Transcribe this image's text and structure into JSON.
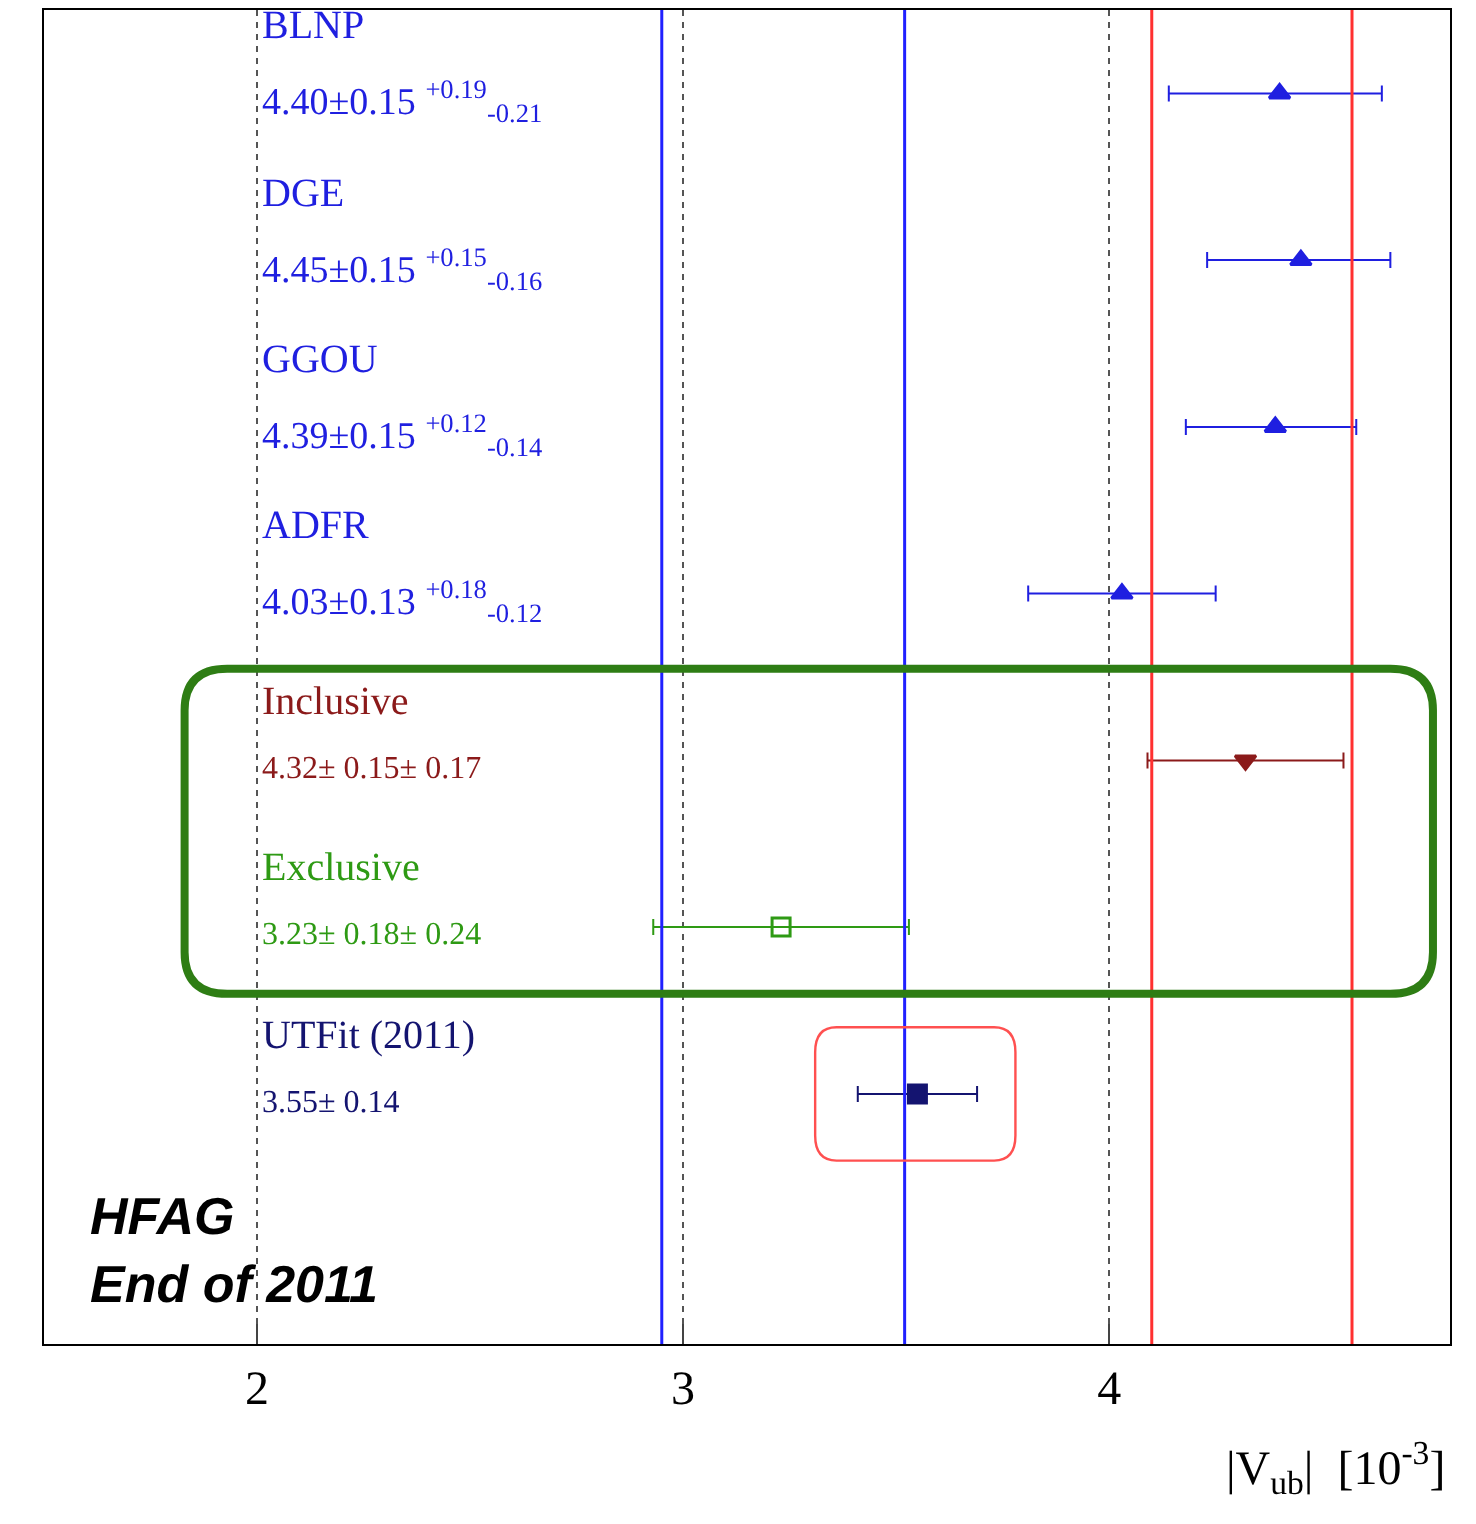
{
  "chart_data": {
    "type": "scatter",
    "orientation": "horizontal",
    "xlabel": "|V$_{ub}$|  [10$^{-3}$]",
    "categories": [
      "BLNP",
      "DGE",
      "GGOU",
      "ADFR",
      "Inclusive",
      "Exclusive",
      "UTFit (2011)",
      null
    ],
    "series": [
      {
        "color": "#1f1fe0",
        "marker": "triangle",
        "values": [
          4.4,
          null,
          null,
          null,
          null,
          null,
          null,
          null
        ],
        "errors": [
          [
            4.14,
            4.64
          ],
          null,
          null,
          null,
          null,
          null,
          null,
          null
        ]
      },
      {
        "color": "#1f1fe0",
        "marker": "triangle",
        "values": [
          null,
          4.45,
          null,
          null,
          null,
          null,
          null,
          null
        ],
        "errors": [
          null,
          [
            4.23,
            4.66
          ],
          null,
          null,
          null,
          null,
          null,
          null
        ]
      },
      {
        "color": "#1f1fe0",
        "marker": "triangle",
        "values": [
          null,
          null,
          4.39,
          null,
          null,
          null,
          null,
          null
        ],
        "errors": [
          null,
          null,
          [
            4.18,
            4.58
          ],
          null,
          null,
          null,
          null,
          null
        ]
      },
      {
        "color": "#1f1fe0",
        "marker": "triangle",
        "values": [
          null,
          null,
          null,
          4.03,
          null,
          null,
          null,
          null
        ],
        "errors": [
          null,
          null,
          null,
          [
            3.81,
            4.25
          ],
          null,
          null,
          null,
          null
        ]
      },
      {
        "color": "#8b1a1a",
        "marker": "triangle-down",
        "values": [
          null,
          null,
          null,
          null,
          4.32,
          null,
          null,
          null
        ],
        "errors": [
          null,
          null,
          null,
          null,
          [
            4.09,
            4.55
          ],
          null,
          null,
          null
        ]
      },
      {
        "color": "#2e9a14",
        "marker": "square-open",
        "values": [
          null,
          null,
          null,
          null,
          null,
          3.23,
          null,
          null
        ],
        "errors": [
          null,
          null,
          null,
          null,
          null,
          [
            2.93,
            3.53
          ],
          null,
          null
        ]
      },
      {
        "color": "#141470",
        "marker": "square",
        "values": [
          null,
          null,
          null,
          null,
          null,
          null,
          3.55,
          null
        ],
        "errors": [
          null,
          null,
          null,
          null,
          null,
          null,
          [
            3.41,
            3.69
          ],
          null
        ]
      }
    ],
    "annotations": [
      "4.40±0.15 $^{+0.19}$$_{-0.21}$",
      "4.45±0.15 $^{+0.15}$$_{-0.16}$",
      "4.39±0.15 $^{+0.12}$$_{-0.14}$",
      "4.03±0.13 $^{+0.18}$$_{-0.12}$",
      "4.32± 0.15± 0.17",
      "3.23± 0.18± 0.24",
      "3.55± 0.14",
      "HFAG\nEnd of 2011"
    ],
    "ref_lines": [
      {
        "axis": "x",
        "value": 2.95,
        "color": "#2020ff"
      },
      {
        "axis": "x",
        "value": 3.52,
        "color": "#2020ff"
      },
      {
        "axis": "x",
        "value": 4.1,
        "color": "#ff3030"
      },
      {
        "axis": "x",
        "value": 4.57,
        "color": "#ff3030"
      }
    ],
    "xlim": [
      1.5,
      4.8
    ],
    "xticks": [
      2,
      3,
      4
    ],
    "grid": "x",
    "legend": false
  }
}
